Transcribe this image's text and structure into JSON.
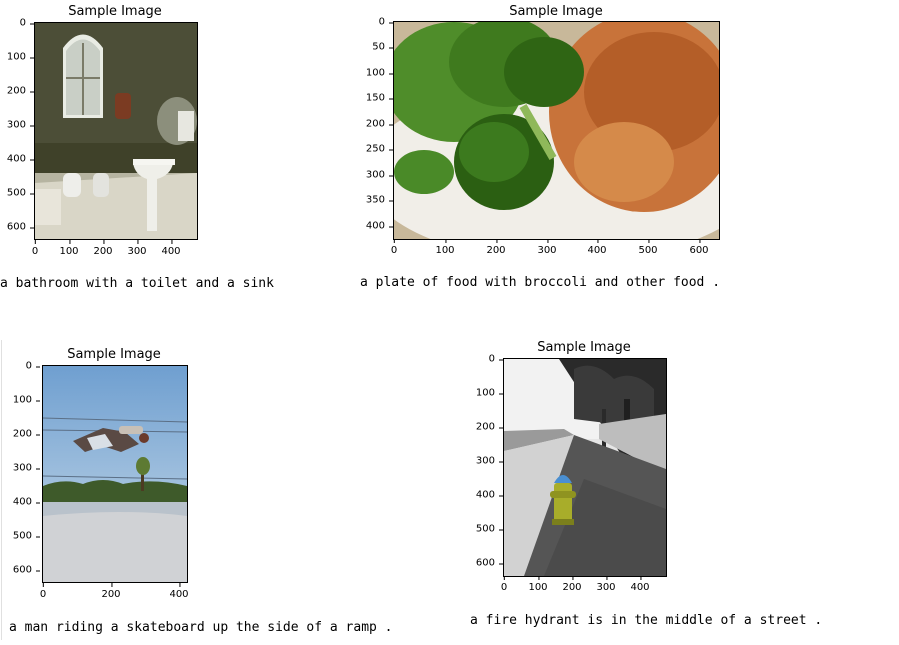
{
  "panels": [
    {
      "title": "Sample Image",
      "caption": "a bathroom with a toilet and a sink",
      "y_ticks": [
        "0",
        "100",
        "200",
        "300",
        "400",
        "500",
        "600"
      ],
      "x_ticks": [
        "0",
        "100",
        "200",
        "300",
        "400"
      ],
      "image_label": "bathroom-photo"
    },
    {
      "title": "Sample Image",
      "caption": "a plate of food with broccoli and other food .",
      "y_ticks": [
        "0",
        "50",
        "100",
        "150",
        "200",
        "250",
        "300",
        "350",
        "400"
      ],
      "x_ticks": [
        "0",
        "100",
        "200",
        "300",
        "400",
        "500",
        "600"
      ],
      "image_label": "food-plate-photo"
    },
    {
      "title": "Sample Image",
      "caption": "a man riding a skateboard up the side of a ramp .",
      "y_ticks": [
        "0",
        "100",
        "200",
        "300",
        "400",
        "500",
        "600"
      ],
      "x_ticks": [
        "0",
        "200",
        "400"
      ],
      "image_label": "skateboarder-photo"
    },
    {
      "title": "Sample Image",
      "caption": "a fire hydrant is in the middle of a street .",
      "y_ticks": [
        "0",
        "100",
        "200",
        "300",
        "400",
        "500",
        "600"
      ],
      "x_ticks": [
        "0",
        "100",
        "200",
        "300",
        "400"
      ],
      "image_label": "fire-hydrant-photo"
    }
  ]
}
